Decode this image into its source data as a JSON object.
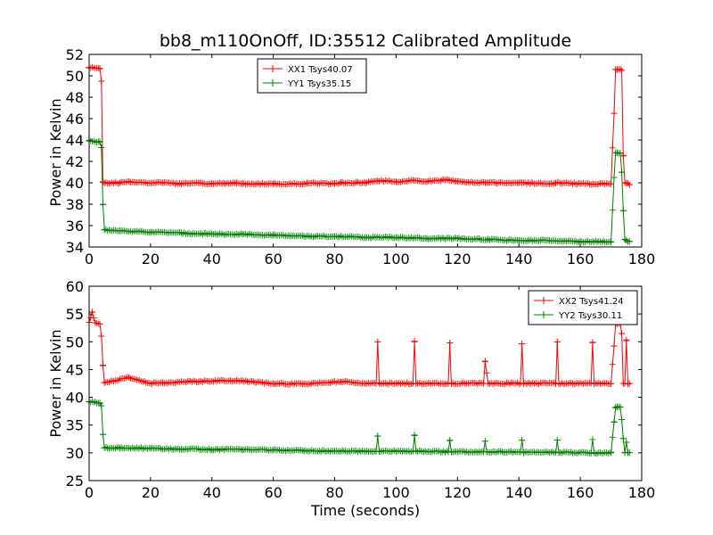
{
  "chart_data": [
    {
      "type": "line",
      "title": "bb8_m110OnOff, ID:35512 Calibrated Amplitude",
      "xlabel": "",
      "ylabel": "Power in Kelvin",
      "xlim": [
        0,
        180
      ],
      "ylim": [
        34,
        52
      ],
      "xticks": [
        0,
        20,
        40,
        60,
        80,
        100,
        120,
        140,
        160,
        180
      ],
      "yticks": [
        34,
        36,
        38,
        40,
        42,
        44,
        46,
        48,
        50,
        52
      ],
      "grid": false,
      "legend_position": "top-center",
      "series": [
        {
          "name": "XX1 Tsys40.07",
          "color": "#ff0000",
          "x": [
            0,
            3.5,
            4,
            4.5,
            5,
            10,
            13,
            20,
            24,
            30,
            36,
            40,
            48,
            50,
            60,
            70,
            71,
            80,
            82,
            90,
            94,
            100,
            106,
            110,
            117,
            120,
            129,
            130,
            140,
            141,
            150,
            152,
            160,
            164,
            170,
            171,
            171.5,
            172,
            173,
            173.5,
            174,
            174.5,
            175,
            176
          ],
          "y": [
            50.8,
            50.7,
            49.5,
            40.1,
            40.0,
            40.0,
            40.1,
            40.0,
            40.0,
            39.9,
            40.0,
            39.9,
            40.0,
            39.9,
            39.9,
            39.9,
            40.0,
            39.9,
            40.0,
            40.0,
            40.2,
            40.1,
            40.2,
            40.1,
            40.3,
            40.1,
            40.0,
            40.0,
            40.0,
            40.0,
            39.9,
            40.0,
            39.9,
            39.9,
            39.9,
            46.5,
            50.6,
            50.6,
            50.6,
            50.5,
            42.5,
            40.0,
            40.0,
            39.8
          ]
        },
        {
          "name": "YY1 Tsys35.15",
          "color": "#008000",
          "x": [
            0,
            3.5,
            4,
            4.5,
            5,
            10,
            20,
            30,
            40,
            50,
            60,
            70,
            80,
            90,
            100,
            110,
            120,
            130,
            140,
            150,
            160,
            170,
            171,
            171.5,
            172,
            173,
            173.5,
            174,
            174.5,
            175,
            176
          ],
          "y": [
            43.9,
            43.8,
            43.3,
            38.0,
            35.6,
            35.5,
            35.4,
            35.3,
            35.2,
            35.2,
            35.1,
            35.0,
            35.0,
            34.9,
            34.9,
            34.8,
            34.8,
            34.7,
            34.6,
            34.6,
            34.5,
            34.5,
            40.5,
            42.8,
            42.8,
            42.8,
            41.0,
            37.4,
            34.7,
            34.6,
            34.5
          ]
        }
      ]
    },
    {
      "type": "line",
      "title": "",
      "xlabel": "Time (seconds)",
      "ylabel": "Power in Kelvin",
      "xlim": [
        0,
        180
      ],
      "ylim": [
        25,
        60
      ],
      "xticks": [
        0,
        20,
        40,
        60,
        80,
        100,
        120,
        140,
        160,
        180
      ],
      "yticks": [
        25,
        30,
        35,
        40,
        45,
        50,
        55,
        60
      ],
      "grid": false,
      "legend_position": "top-right",
      "series": [
        {
          "name": "XX2 Tsys41.24",
          "color": "#ff0000",
          "x": [
            0,
            1,
            2,
            3.5,
            4,
            4.5,
            5,
            13,
            20,
            24,
            36,
            48,
            60,
            70,
            82,
            90,
            93.5,
            94,
            94.5,
            105.5,
            106,
            106.5,
            117,
            117.5,
            118,
            128.5,
            129,
            130,
            140.5,
            141,
            141.5,
            152,
            152.5,
            153,
            163.5,
            164,
            164.5,
            170,
            171,
            171.5,
            172,
            173,
            173.5,
            174,
            174.5,
            175,
            175.5,
            176
          ],
          "y": [
            53.5,
            55.3,
            53.4,
            53.2,
            51.0,
            45.7,
            42.6,
            43.6,
            42.5,
            42.6,
            42.9,
            43.0,
            42.5,
            42.4,
            42.8,
            42.5,
            42.5,
            50.0,
            42.5,
            42.5,
            50.1,
            42.5,
            42.5,
            49.8,
            42.5,
            42.5,
            46.4,
            42.5,
            42.5,
            49.6,
            42.5,
            42.5,
            50.0,
            42.5,
            42.5,
            49.8,
            42.5,
            42.5,
            49.2,
            53.2,
            53.3,
            53.3,
            51.5,
            42.5,
            42.5,
            50.2,
            42.5,
            42.5
          ]
        },
        {
          "name": "YY2 Tsys30.11",
          "color": "#008000",
          "x": [
            0,
            3.5,
            4,
            4.5,
            5,
            10,
            20,
            30,
            40,
            50,
            60,
            70,
            80,
            93.5,
            94,
            94.5,
            105.5,
            106,
            106.5,
            117,
            117.5,
            118,
            128.5,
            129,
            129.5,
            140.5,
            141,
            141.5,
            152,
            152.5,
            153,
            163.5,
            164,
            164.5,
            170,
            171,
            171.5,
            172,
            173,
            173.5,
            174,
            174.5,
            175,
            175.5,
            176
          ],
          "y": [
            39.2,
            39.0,
            38.5,
            33.3,
            30.9,
            30.9,
            30.8,
            30.7,
            30.6,
            30.6,
            30.5,
            30.4,
            30.3,
            30.3,
            33.0,
            30.3,
            30.3,
            33.1,
            30.3,
            30.2,
            32.3,
            30.2,
            30.2,
            32.1,
            30.2,
            30.1,
            32.3,
            30.1,
            30.1,
            32.3,
            30.1,
            30.0,
            32.4,
            30.0,
            30.0,
            35.5,
            38.2,
            38.2,
            38.2,
            36.0,
            32.6,
            30.1,
            31.9,
            30.0,
            30.0
          ]
        }
      ]
    }
  ]
}
